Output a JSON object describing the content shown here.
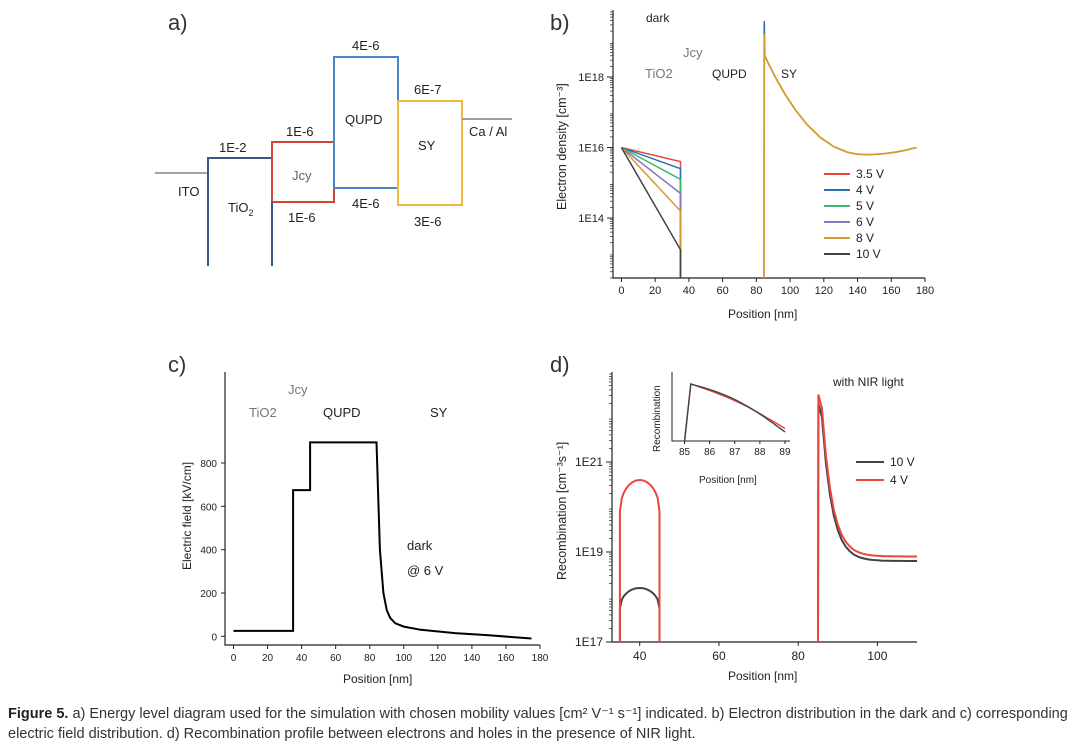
{
  "panels": {
    "a": {
      "label": "a)",
      "levels": {
        "ito": "ITO",
        "tio2": "TiO",
        "tio2_sub": "2",
        "jcy": "Jcy",
        "qupd": "QUPD",
        "sy": "SY",
        "caal": "Ca / Al"
      },
      "mobilities": {
        "tio2": "1E-2",
        "jcy_top": "1E-6",
        "jcy_bottom": "1E-6",
        "qupd_top": "4E-6",
        "qupd_bottom": "4E-6",
        "sy_top": "6E-7",
        "sy_bottom": "3E-6"
      },
      "colors": {
        "ito": "#9aa7b0",
        "tio2": "#3b5680",
        "jcy": "#d2463a",
        "qupd": "#4a85cc",
        "sy": "#f0b840",
        "caal": "#8fa0a8"
      }
    },
    "b": {
      "label": "b)",
      "annotation": "dark",
      "layer_labels": [
        "TiO2",
        "Jcy",
        "QUPD",
        "SY"
      ],
      "ylabel": "Electron density [cm⁻³]",
      "xlabel": "Position [nm]"
    },
    "c": {
      "label": "c)",
      "layer_labels": [
        "TiO2",
        "Jcy",
        "QUPD",
        "SY"
      ],
      "annotation_1": "dark",
      "annotation_2": "@ 6 V",
      "ylabel": "Electric field [kV/cm]",
      "xlabel": "Position [nm]"
    },
    "d": {
      "label": "d)",
      "annotation": "with NIR light",
      "ylabel": "Recombination [cm⁻³s⁻¹]",
      "xlabel": "Position [nm]",
      "inset_ylabel": "Recombination",
      "inset_xlabel": "Position [nm]"
    }
  },
  "chart_data": [
    {
      "id": "b",
      "type": "line",
      "title": "",
      "xlabel": "Position [nm]",
      "ylabel": "Electron density [cm-3]",
      "yscale": "log",
      "xlim": [
        -5,
        180
      ],
      "ylim_log10": [
        12.3,
        19.9
      ],
      "xticks": [
        0,
        20,
        40,
        60,
        80,
        100,
        120,
        140,
        160,
        180
      ],
      "yticks_labels": [
        "1E14",
        "1E16",
        "1E18"
      ],
      "yticks_values_log10": [
        14,
        16,
        18
      ],
      "legend": "right",
      "series": [
        {
          "name": "3.5 V",
          "color": "#e8473f",
          "end_log10": 15.6
        },
        {
          "name": "4 V",
          "color": "#2f6fb5",
          "end_log10": 15.4
        },
        {
          "name": "5 V",
          "color": "#3bb86a",
          "end_log10": 15.1
        },
        {
          "name": "6 V",
          "color": "#8c72c0",
          "end_log10": 14.7
        },
        {
          "name": "8 V",
          "color": "#d39a2e",
          "end_log10": 14.2
        },
        {
          "name": "10 V",
          "color": "#3f4448",
          "end_log10": 13.1
        }
      ],
      "tio2_region": {
        "x_start": 0,
        "x_end": 35,
        "start_log10": 16
      },
      "sy_peak_log10": 19.5,
      "sy_min": {
        "x": 145,
        "log10": 15.8
      },
      "sy_end": {
        "x": 175,
        "log10": 16.0
      }
    },
    {
      "id": "c",
      "type": "line",
      "xlabel": "Position [nm]",
      "ylabel": "Electric field [kV/cm]",
      "xlim": [
        -5,
        180
      ],
      "ylim": [
        -40,
        1220
      ],
      "xticks": [
        0,
        20,
        40,
        60,
        80,
        100,
        120,
        140,
        160,
        180
      ],
      "yticks": [
        0,
        200,
        400,
        600,
        800
      ],
      "series": [
        {
          "name": "dark @ 6 V",
          "color": "#000000",
          "x": [
            0,
            35,
            35,
            45,
            45,
            84,
            86,
            88,
            90,
            92,
            95,
            100,
            110,
            130,
            150,
            175
          ],
          "y": [
            25,
            25,
            675,
            675,
            895,
            895,
            400,
            200,
            120,
            85,
            60,
            45,
            30,
            15,
            5,
            -10
          ]
        }
      ]
    },
    {
      "id": "d",
      "type": "line",
      "xlabel": "Position [nm]",
      "ylabel": "Recombination [cm-3s-1]",
      "yscale": "log",
      "xlim": [
        33,
        110
      ],
      "ylim_log10": [
        17,
        23.0
      ],
      "xticks": [
        40,
        60,
        80,
        100
      ],
      "yticks_labels": [
        "1E17",
        "1E19",
        "1E21"
      ],
      "yticks_values_log10": [
        17,
        19,
        21
      ],
      "legend": "right",
      "series": [
        {
          "name": "10 V",
          "color": "#3f4448",
          "hump_peak_log10": 18.2,
          "hump_edge_log10": 17.75,
          "sy_peak_log10": 22.3,
          "sy_tail_log10": 18.8
        },
        {
          "name": "4 V",
          "color": "#e8473f",
          "hump_peak_log10": 20.6,
          "hump_edge_log10": 19.9,
          "sy_peak_log10": 22.5,
          "sy_tail_log10": 18.9
        }
      ],
      "inset": {
        "xlabel": "Position [nm]",
        "ylabel": "Recombination",
        "xlim": [
          84.5,
          89.2
        ],
        "xticks": [
          85,
          86,
          87,
          88,
          89
        ]
      }
    }
  ],
  "caption": {
    "label": "Figure 5.",
    "text": "a) Energy level diagram used for the simulation with chosen mobility values [cm² V⁻¹ s⁻¹] indicated. b) Electron distribution in the dark and c) corresponding electric field distribution. d) Recombination profile between electrons and holes in the presence of NIR light."
  }
}
